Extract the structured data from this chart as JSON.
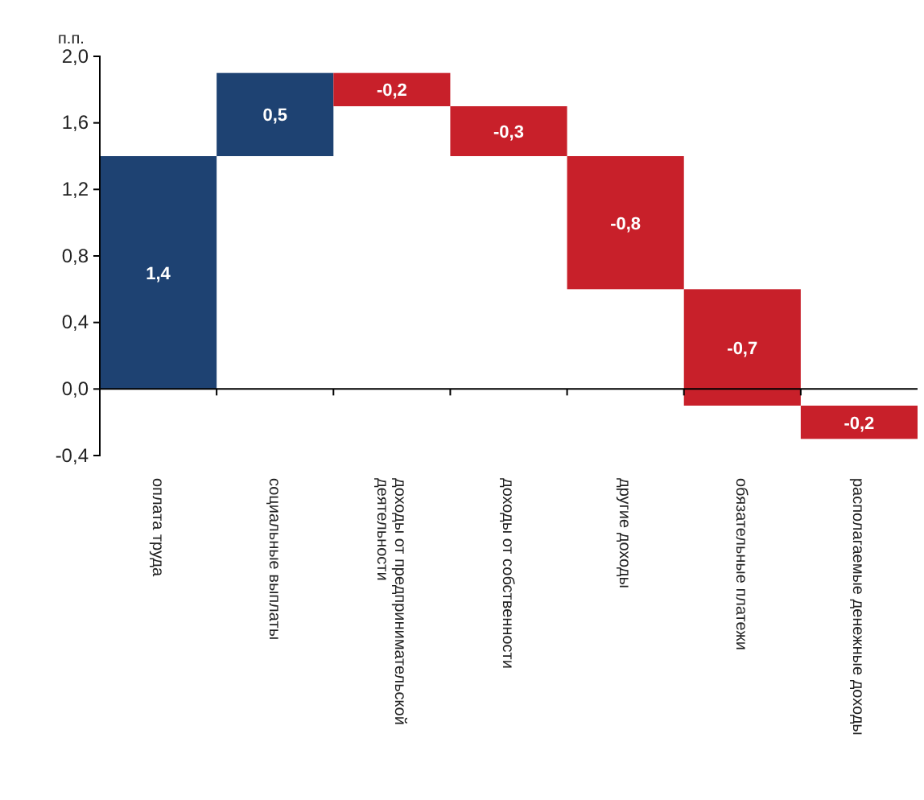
{
  "chart_data": {
    "type": "bar",
    "ylabel": "п.п.",
    "categories": [
      "оплата труда",
      "социальные выплаты",
      "доходы от предпринимательской деятельности",
      "доходы от собственности",
      "другие доходы",
      "обязательные платежи",
      "располагаемые денежные доходы"
    ],
    "values": [
      1.4,
      0.5,
      -0.2,
      -0.3,
      -0.8,
      -0.7,
      -0.2
    ],
    "base": [
      0,
      1.4,
      1.9,
      1.7,
      1.4,
      0.6,
      -0.1
    ],
    "colors": [
      "#1e4272",
      "#1e4272",
      "#c8202a",
      "#c8202a",
      "#c8202a",
      "#c8202a",
      "#c8202a"
    ],
    "value_labels": [
      "1,4",
      "0,5",
      "-0,2",
      "-0,3",
      "-0,8",
      "-0,7",
      "-0,2"
    ],
    "ylim": [
      -0.4,
      2.0
    ],
    "yticks": [
      {
        "value": -0.4,
        "label": "-0,4"
      },
      {
        "value": 0,
        "label": "0,0"
      },
      {
        "value": 0.4,
        "label": "0,4"
      },
      {
        "value": 0.8,
        "label": "0,8"
      },
      {
        "value": 1.2,
        "label": "1,2"
      },
      {
        "value": 1.6,
        "label": "1,6"
      },
      {
        "value": 2.0,
        "label": "2,0"
      }
    ],
    "orientation": "vertical"
  }
}
